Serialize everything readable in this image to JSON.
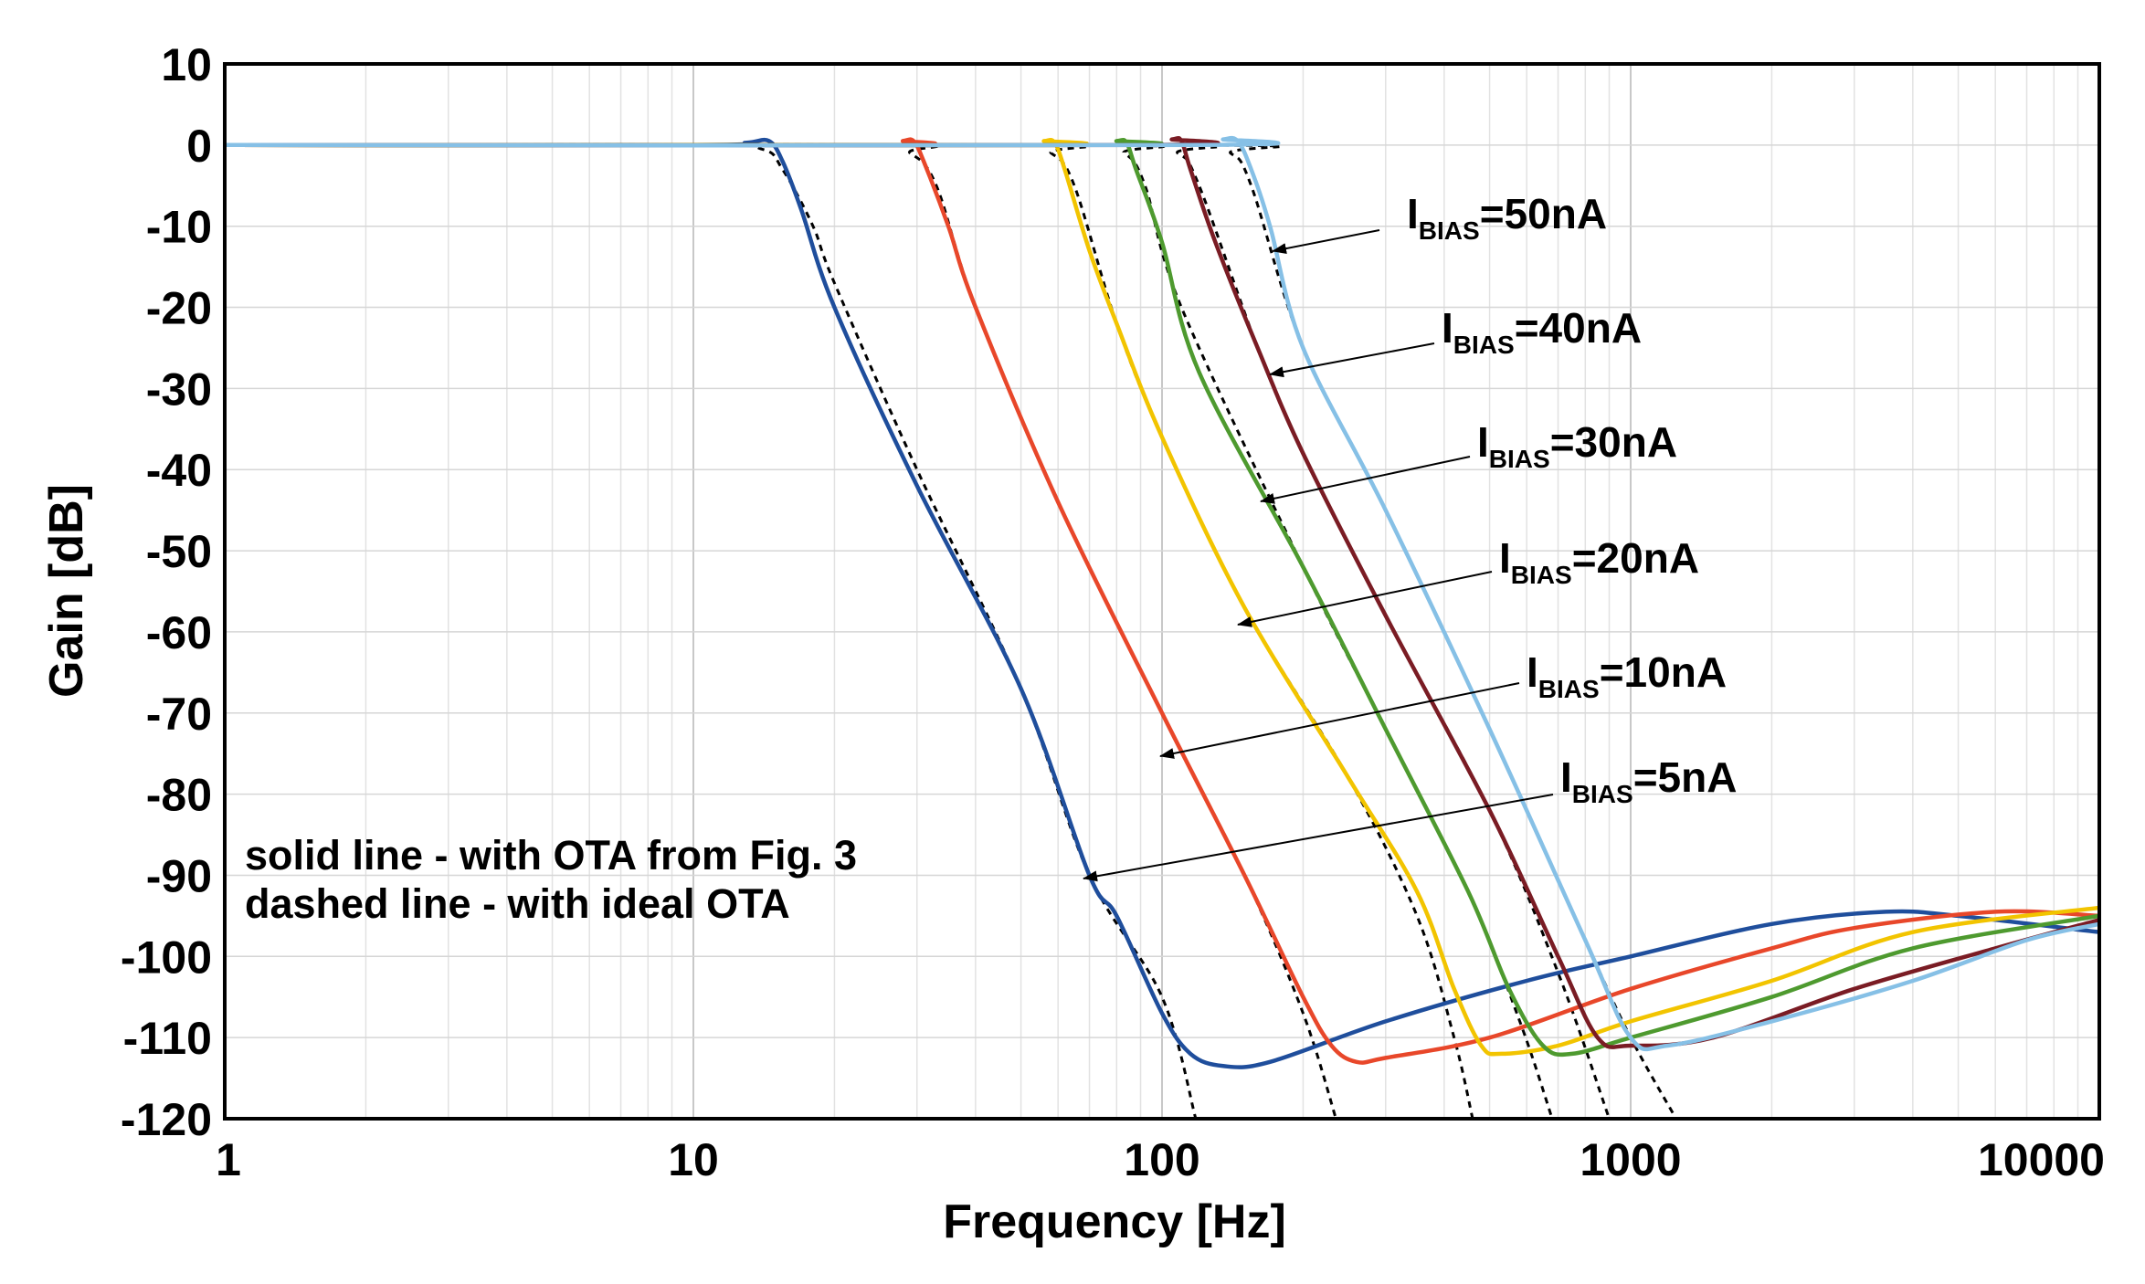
{
  "chart_data": {
    "type": "line",
    "title": "",
    "xlabel": "Frequency [Hz]",
    "ylabel": "Gain [dB]",
    "xscale": "log",
    "xlim": [
      1,
      10000
    ],
    "ylim": [
      -120,
      10
    ],
    "grid": true,
    "x_ticks": [
      {
        "value": 1,
        "label": "1"
      },
      {
        "value": 10,
        "label": "10"
      },
      {
        "value": 100,
        "label": "100"
      },
      {
        "value": 1000,
        "label": "1000"
      },
      {
        "value": 10000,
        "label": "10000"
      }
    ],
    "y_ticks": [
      {
        "value": 10,
        "label": "10"
      },
      {
        "value": 0,
        "label": "0"
      },
      {
        "value": -10,
        "label": "-10"
      },
      {
        "value": -20,
        "label": "-20"
      },
      {
        "value": -30,
        "label": "-30"
      },
      {
        "value": -40,
        "label": "-40"
      },
      {
        "value": -50,
        "label": "-50"
      },
      {
        "value": -60,
        "label": "-60"
      },
      {
        "value": -70,
        "label": "-70"
      },
      {
        "value": -80,
        "label": "-80"
      },
      {
        "value": -90,
        "label": "-90"
      },
      {
        "value": -100,
        "label": "-100"
      },
      {
        "value": -110,
        "label": "-110"
      },
      {
        "value": -120,
        "label": "-120"
      }
    ],
    "legend_lines": [
      {
        "id": "solid",
        "text": "solid line - with OTA from Fig. 3"
      },
      {
        "id": "dashed",
        "text": "dashed line - with ideal OTA"
      }
    ],
    "series": [
      {
        "name": "IBIAS=5nA",
        "label_main": "I",
        "label_sub": "BIAS",
        "label_rest": "=5nA",
        "color": "#1f4e9c",
        "points": [
          [
            1,
            0
          ],
          [
            10,
            0
          ],
          [
            13,
            0.3
          ],
          [
            14.5,
            0.5
          ],
          [
            15.5,
            -2
          ],
          [
            17,
            -8
          ],
          [
            20,
            -20
          ],
          [
            30,
            -42
          ],
          [
            50,
            -67
          ],
          [
            70,
            -90
          ],
          [
            80,
            -95
          ],
          [
            100,
            -107
          ],
          [
            115,
            -112
          ],
          [
            135,
            -113.5
          ],
          [
            170,
            -113
          ],
          [
            300,
            -108
          ],
          [
            600,
            -103
          ],
          [
            1000,
            -100
          ],
          [
            2000,
            -96
          ],
          [
            3500,
            -94.5
          ],
          [
            5000,
            -95
          ],
          [
            10000,
            -97
          ]
        ],
        "ideal": [
          [
            1,
            0
          ],
          [
            10,
            0
          ],
          [
            14,
            -0.5
          ],
          [
            15.5,
            -3
          ],
          [
            18,
            -10
          ],
          [
            20,
            -17
          ],
          [
            30,
            -40
          ],
          [
            50,
            -67
          ],
          [
            70,
            -90
          ],
          [
            100,
            -105
          ],
          [
            118,
            -120
          ]
        ]
      },
      {
        "name": "IBIAS=10nA",
        "label_main": "I",
        "label_sub": "BIAS",
        "label_rest": "=10nA",
        "color": "#e8472a",
        "points": [
          [
            1,
            0
          ],
          [
            25,
            0
          ],
          [
            28,
            0.5
          ],
          [
            29.5,
            0.5
          ],
          [
            31,
            -2
          ],
          [
            35,
            -10
          ],
          [
            40,
            -20
          ],
          [
            60,
            -44
          ],
          [
            100,
            -70
          ],
          [
            150,
            -90
          ],
          [
            200,
            -105
          ],
          [
            230,
            -111
          ],
          [
            260,
            -113
          ],
          [
            300,
            -112.5
          ],
          [
            500,
            -110
          ],
          [
            1000,
            -104
          ],
          [
            2000,
            -99
          ],
          [
            3000,
            -96.5
          ],
          [
            6000,
            -94.5
          ],
          [
            10000,
            -95
          ]
        ],
        "ideal": [
          [
            1,
            0
          ],
          [
            25,
            0
          ],
          [
            29,
            -1
          ],
          [
            33,
            -5
          ],
          [
            40,
            -20
          ],
          [
            60,
            -44
          ],
          [
            100,
            -70
          ],
          [
            150,
            -90
          ],
          [
            200,
            -107
          ],
          [
            235,
            -120
          ]
        ]
      },
      {
        "name": "IBIAS=20nA",
        "label_main": "I",
        "label_sub": "BIAS",
        "label_rest": "=20nA",
        "color": "#f2c400",
        "points": [
          [
            1,
            0
          ],
          [
            50,
            0
          ],
          [
            56,
            0.5
          ],
          [
            59,
            0.3
          ],
          [
            62,
            -3
          ],
          [
            70,
            -13
          ],
          [
            80,
            -22
          ],
          [
            100,
            -36
          ],
          [
            150,
            -57
          ],
          [
            250,
            -78
          ],
          [
            350,
            -92
          ],
          [
            420,
            -104
          ],
          [
            480,
            -111
          ],
          [
            530,
            -112
          ],
          [
            700,
            -111
          ],
          [
            1000,
            -108
          ],
          [
            2000,
            -103
          ],
          [
            4000,
            -97
          ],
          [
            10000,
            -94
          ]
        ],
        "ideal": [
          [
            1,
            0
          ],
          [
            50,
            0
          ],
          [
            58,
            -1
          ],
          [
            65,
            -5
          ],
          [
            80,
            -22
          ],
          [
            100,
            -36
          ],
          [
            150,
            -57
          ],
          [
            250,
            -78
          ],
          [
            350,
            -95
          ],
          [
            420,
            -110
          ],
          [
            460,
            -120
          ]
        ]
      },
      {
        "name": "IBIAS=30nA",
        "label_main": "I",
        "label_sub": "BIAS",
        "label_rest": "=30nA",
        "color": "#4e9a2f",
        "points": [
          [
            1,
            0
          ],
          [
            70,
            0
          ],
          [
            80,
            0.5
          ],
          [
            84,
            0.3
          ],
          [
            88,
            -3
          ],
          [
            100,
            -12
          ],
          [
            120,
            -28
          ],
          [
            200,
            -52
          ],
          [
            300,
            -72
          ],
          [
            450,
            -92
          ],
          [
            550,
            -104
          ],
          [
            650,
            -111
          ],
          [
            750,
            -112
          ],
          [
            1000,
            -110
          ],
          [
            2000,
            -105
          ],
          [
            4000,
            -99
          ],
          [
            10000,
            -95
          ]
        ],
        "ideal": [
          [
            1,
            0
          ],
          [
            70,
            0
          ],
          [
            83,
            -1
          ],
          [
            92,
            -5
          ],
          [
            110,
            -20
          ],
          [
            200,
            -52
          ],
          [
            300,
            -72
          ],
          [
            450,
            -92
          ],
          [
            580,
            -108
          ],
          [
            680,
            -120
          ]
        ]
      },
      {
        "name": "IBIAS=40nA",
        "label_main": "I",
        "label_sub": "BIAS",
        "label_rest": "=40nA",
        "color": "#7a1c24",
        "points": [
          [
            1,
            0
          ],
          [
            90,
            0
          ],
          [
            105,
            0.7
          ],
          [
            110,
            0.5
          ],
          [
            115,
            -3
          ],
          [
            130,
            -12
          ],
          [
            160,
            -25
          ],
          [
            200,
            -38
          ],
          [
            300,
            -58
          ],
          [
            500,
            -82
          ],
          [
            700,
            -100
          ],
          [
            850,
            -110
          ],
          [
            1000,
            -111
          ],
          [
            1500,
            -110
          ],
          [
            3000,
            -104
          ],
          [
            6000,
            -99
          ],
          [
            10000,
            -95.5
          ]
        ],
        "ideal": [
          [
            1,
            0
          ],
          [
            90,
            0
          ],
          [
            108,
            -1
          ],
          [
            120,
            -5
          ],
          [
            160,
            -25
          ],
          [
            200,
            -38
          ],
          [
            300,
            -58
          ],
          [
            500,
            -82
          ],
          [
            700,
            -102
          ],
          [
            900,
            -120
          ]
        ]
      },
      {
        "name": "IBIAS=50nA",
        "label_main": "I",
        "label_sub": "BIAS",
        "label_rest": "=50nA",
        "color": "#86c0e6",
        "points": [
          [
            1,
            0
          ],
          [
            120,
            0
          ],
          [
            135,
            0.7
          ],
          [
            145,
            0.5
          ],
          [
            155,
            -3
          ],
          [
            170,
            -10
          ],
          [
            200,
            -25
          ],
          [
            300,
            -45
          ],
          [
            500,
            -72
          ],
          [
            800,
            -98
          ],
          [
            1000,
            -110
          ],
          [
            1200,
            -111
          ],
          [
            2000,
            -108
          ],
          [
            4000,
            -103
          ],
          [
            7000,
            -98
          ],
          [
            10000,
            -96
          ]
        ],
        "ideal": [
          [
            1,
            0
          ],
          [
            120,
            0
          ],
          [
            140,
            -1
          ],
          [
            155,
            -5
          ],
          [
            200,
            -25
          ],
          [
            300,
            -45
          ],
          [
            500,
            -72
          ],
          [
            800,
            -98
          ],
          [
            1000,
            -110
          ],
          [
            1250,
            -120
          ]
        ]
      }
    ]
  }
}
